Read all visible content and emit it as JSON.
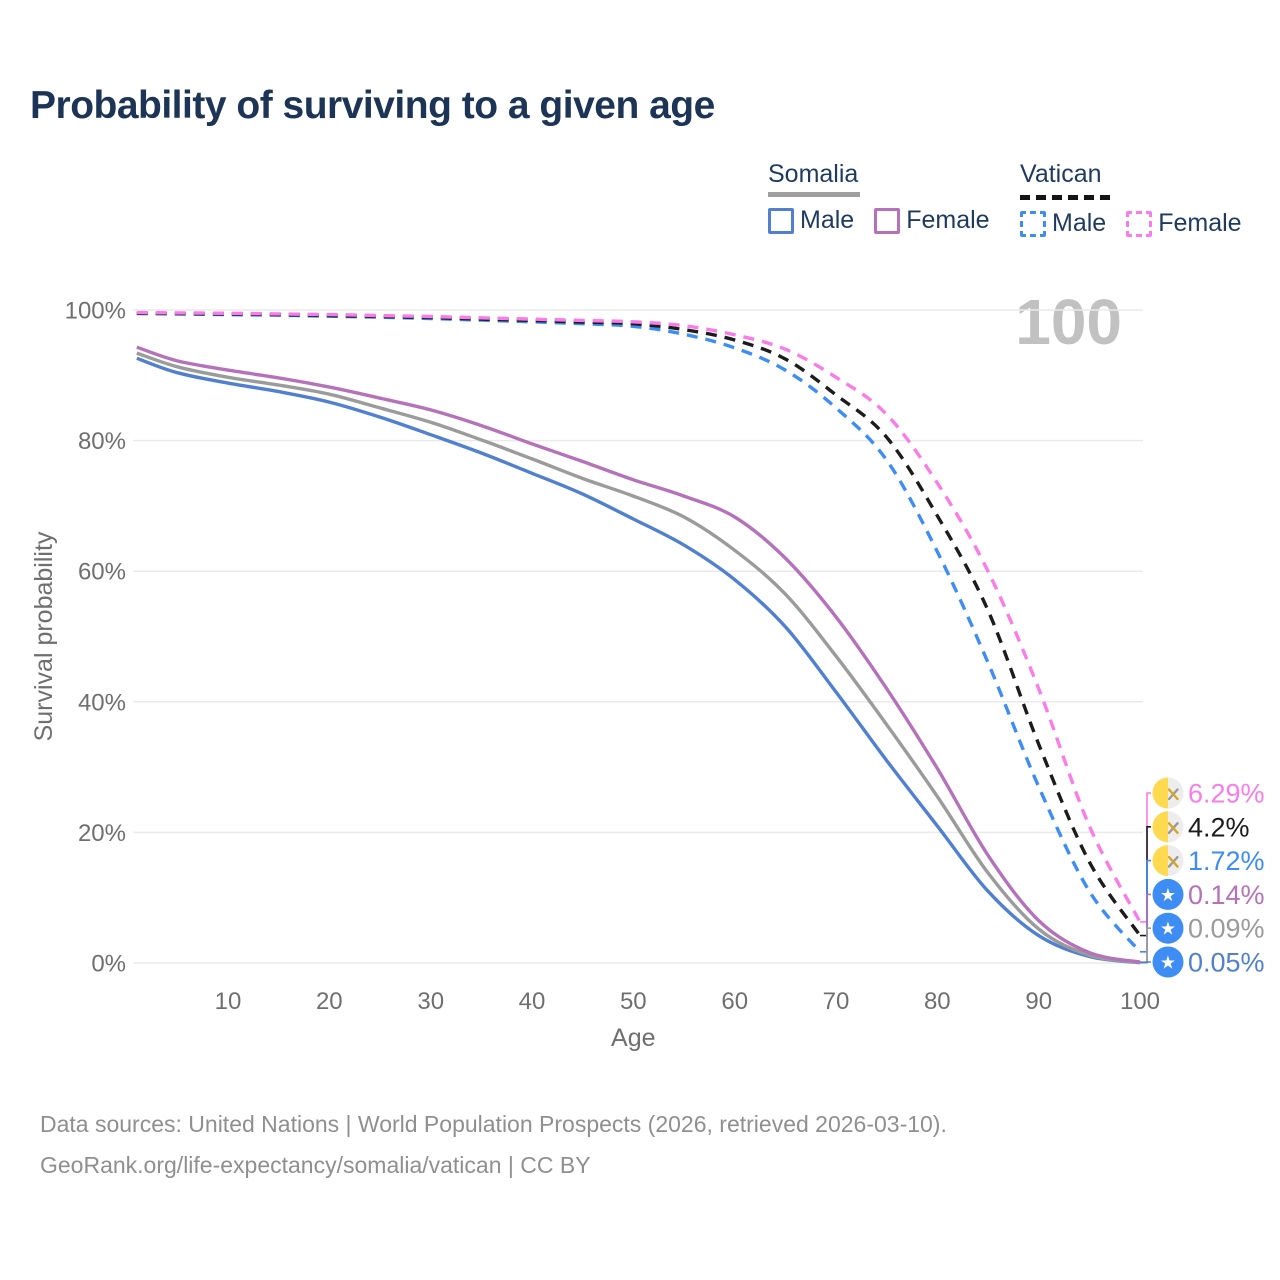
{
  "watermark": "100",
  "legend": {
    "groups": [
      {
        "name": "Somalia",
        "line_style": "solid",
        "items": [
          {
            "label": "Male",
            "color": "#5080cf"
          },
          {
            "label": "Female",
            "color": "#b572ba"
          }
        ]
      },
      {
        "name": "Vatican",
        "line_style": "dashed",
        "items": [
          {
            "label": "Male",
            "color": "#3d8df5"
          },
          {
            "label": "Female",
            "color": "#fb7ce8"
          }
        ]
      }
    ]
  },
  "chart_data": {
    "type": "line",
    "title": "Probability of surviving to a given age",
    "xlabel": "Age",
    "ylabel": "Survival probability",
    "xlim": [
      0,
      100
    ],
    "ylim": [
      0,
      100
    ],
    "grid": "horizontal",
    "x_ticks": [
      10,
      20,
      30,
      40,
      50,
      60,
      70,
      80,
      90,
      100
    ],
    "x_tick_labels": [
      "10",
      "20",
      "30",
      "40",
      "50",
      "60",
      "70",
      "80",
      "90",
      "100"
    ],
    "y_ticks": [
      0,
      20,
      40,
      60,
      80,
      100
    ],
    "y_tick_labels": [
      "0%",
      "20%",
      "40%",
      "60%",
      "80%",
      "100%"
    ],
    "ages": [
      1,
      5,
      10,
      15,
      20,
      25,
      30,
      35,
      40,
      45,
      50,
      55,
      60,
      65,
      70,
      75,
      80,
      85,
      90,
      95,
      100
    ],
    "series": [
      {
        "name": "Somalia Male",
        "country": "Somalia",
        "sex": "male",
        "flag": "somalia",
        "color": "#5080cf",
        "dashed": false,
        "end_label": "0.05%",
        "values": [
          92.6,
          90.4,
          88.8,
          87.5,
          85.9,
          83.6,
          80.9,
          78.1,
          75.0,
          71.8,
          68.0,
          64.0,
          58.7,
          51.5,
          41.5,
          31.0,
          21.0,
          11.0,
          4.2,
          1.0,
          0.05
        ]
      },
      {
        "name": "Somalia Combined",
        "country": "Somalia",
        "sex": "combined",
        "flag": "somalia",
        "color": "#9b9b9b",
        "dashed": false,
        "end_label": "0.09%",
        "values": [
          93.4,
          91.3,
          89.7,
          88.5,
          87.1,
          85.0,
          82.8,
          80.1,
          77.2,
          74.2,
          71.5,
          68.3,
          63.2,
          56.5,
          47.0,
          36.5,
          25.5,
          13.8,
          5.2,
          1.2,
          0.09
        ]
      },
      {
        "name": "Somalia Female",
        "country": "Somalia",
        "sex": "female",
        "flag": "somalia",
        "color": "#b572ba",
        "dashed": false,
        "end_label": "0.14%",
        "values": [
          94.3,
          92.2,
          90.8,
          89.6,
          88.2,
          86.5,
          84.7,
          82.3,
          79.5,
          76.8,
          74.0,
          71.5,
          68.3,
          62.0,
          53.0,
          42.0,
          29.8,
          16.5,
          6.5,
          1.6,
          0.14
        ]
      },
      {
        "name": "Vatican Male",
        "country": "Vatican",
        "sex": "male",
        "flag": "vatican",
        "color": "#3d8df5",
        "dashed": true,
        "end_label": "1.72%",
        "values": [
          99.45,
          99.4,
          99.3,
          99.2,
          99.05,
          98.9,
          98.7,
          98.45,
          98.2,
          97.9,
          97.5,
          96.3,
          94.2,
          90.8,
          85.0,
          77.0,
          63.0,
          46.0,
          27.0,
          11.0,
          1.72
        ]
      },
      {
        "name": "Vatican Combined",
        "country": "Vatican",
        "sex": "combined",
        "flag": "vatican",
        "color": "#1c1c1c",
        "dashed": true,
        "end_label": "4.2%",
        "values": [
          99.5,
          99.45,
          99.4,
          99.3,
          99.15,
          99.0,
          98.85,
          98.6,
          98.4,
          98.15,
          97.9,
          97.0,
          95.4,
          92.5,
          87.0,
          80.5,
          68.5,
          54.0,
          33.5,
          15.5,
          4.2
        ]
      },
      {
        "name": "Vatican Female",
        "country": "Vatican",
        "sex": "female",
        "flag": "vatican",
        "color": "#fb7ce8",
        "dashed": true,
        "end_label": "6.29%",
        "values": [
          99.6,
          99.55,
          99.5,
          99.4,
          99.3,
          99.15,
          99.0,
          98.8,
          98.6,
          98.4,
          98.2,
          97.6,
          96.2,
          94.0,
          89.7,
          84.0,
          73.5,
          60.0,
          42.0,
          21.0,
          6.29
        ]
      }
    ],
    "flag_colors": {
      "somalia_blue": "#3d8df5",
      "somalia_star": "#ffffff",
      "vatican_yellow": "#ffd94f",
      "vatican_white": "#ededed",
      "vatican_key_silver": "#9a9a9a",
      "vatican_key_gold": "#d9a520"
    },
    "style": {
      "grid_color": "#eaeaea",
      "axis_text_color": "#6f6f6f",
      "title_color": "#1c3455",
      "watermark_color": "#c1c1c1"
    }
  },
  "footer": {
    "line1": "Data sources: United Nations | World Population Prospects (2026, retrieved 2026-03-10).",
    "line2": "GeoRank.org/life-expectancy/somalia/vatican | CC BY"
  }
}
